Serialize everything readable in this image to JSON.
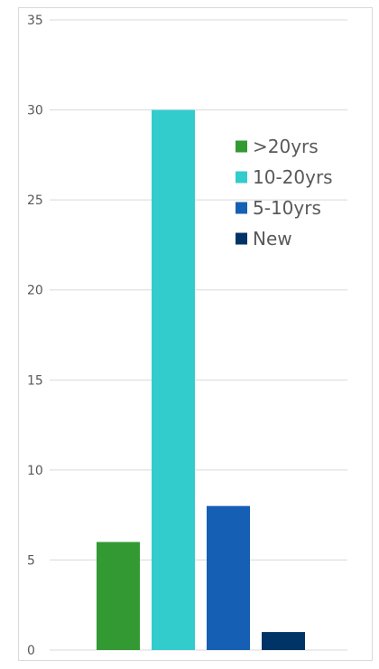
{
  "chart_data": {
    "type": "bar",
    "title": "",
    "xlabel": "",
    "ylabel": "",
    "ylim": [
      0,
      35
    ],
    "yticks": [
      0,
      5,
      10,
      15,
      20,
      25,
      30,
      35
    ],
    "grid": true,
    "legend_position": "top-right",
    "series": [
      {
        "name": ">20yrs",
        "value": 6,
        "color": "#339933"
      },
      {
        "name": "10-20yrs",
        "value": 30,
        "color": "#33cccc"
      },
      {
        "name": "5-10yrs",
        "value": 8,
        "color": "#1560b5"
      },
      {
        "name": "New",
        "value": 1,
        "color": "#003366"
      }
    ]
  }
}
